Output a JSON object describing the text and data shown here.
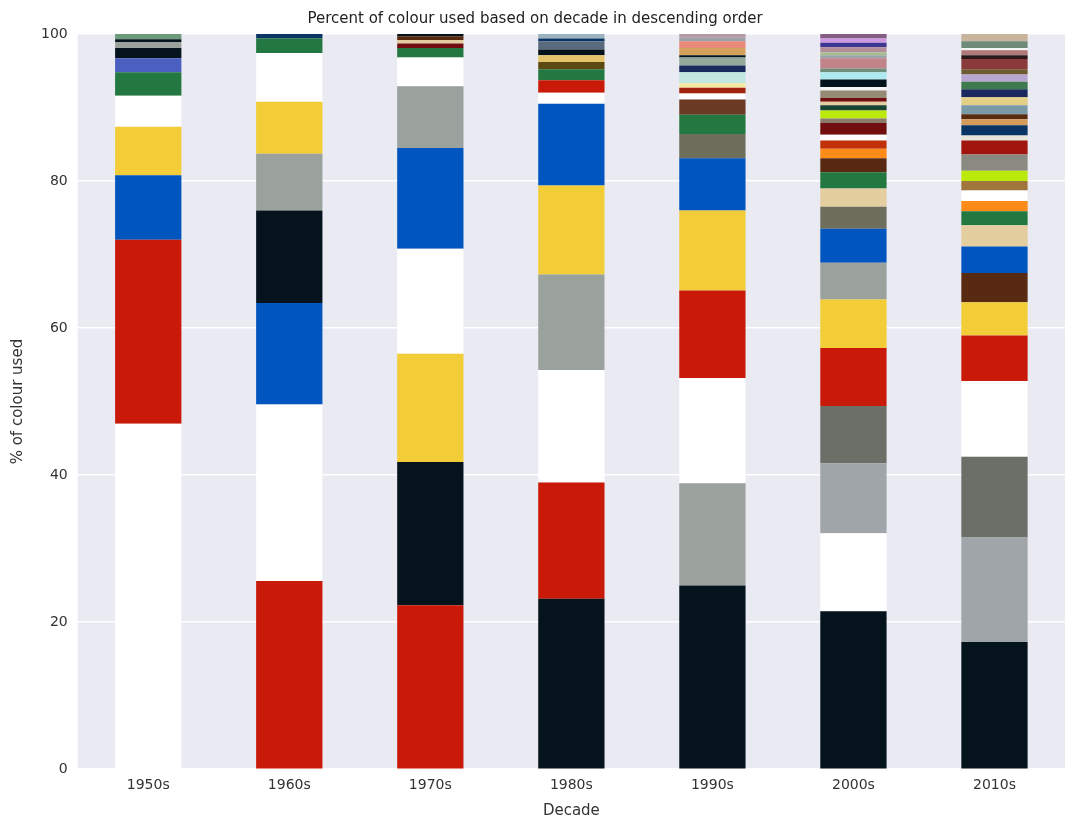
{
  "chart_data": {
    "type": "bar",
    "title": "Percent of colour used based on decade in descending order",
    "xlabel": "Decade",
    "ylabel": "% of colour used",
    "categories": [
      "1950s",
      "1960s",
      "1970s",
      "1980s",
      "1990s",
      "2000s",
      "2010s"
    ],
    "stacked": true,
    "ylim": [
      0,
      100
    ],
    "yticks": [
      0,
      20,
      40,
      60,
      80,
      100
    ],
    "grid": "y",
    "legend": false,
    "series": [
      {
        "values": [
          47,
          25.6,
          22.3,
          23.2,
          25,
          21.5,
          17.3
        ],
        "colors": [
          "#ffffff",
          "#c91a09",
          "#c91a09",
          "#05131d",
          "#05131d",
          "#05131d",
          "#05131d"
        ]
      },
      {
        "values": [
          25,
          24,
          19.5,
          15.8,
          13.9,
          10.6,
          14.2
        ],
        "colors": [
          "#c91a09",
          "#ffffff",
          "#05131d",
          "#c91a09",
          "#9ba19d",
          "#ffffff",
          "#a0a5a9"
        ]
      },
      {
        "values": [
          8.8,
          13.8,
          14.7,
          15.3,
          14.3,
          9.5,
          11.0
        ],
        "colors": [
          "#0055bf",
          "#0055bf",
          "#f2cd37",
          "#ffffff",
          "#ffffff",
          "#a0a5a9",
          "#6c6e68"
        ]
      },
      {
        "values": [
          6.6,
          12.6,
          14.3,
          13.0,
          11.9,
          7.8,
          10.3
        ],
        "colors": [
          "#f2cd37",
          "#05131d",
          "#ffffff",
          "#9ba19d",
          "#c91a09",
          "#6c6e68",
          "#ffffff"
        ]
      },
      {
        "values": [
          4.2,
          7.7,
          13.7,
          12.1,
          10.9,
          7.9,
          6.2
        ],
        "colors": [
          "#ffffff",
          "#9ba19d",
          "#0055bf",
          "#f2cd37",
          "#f2cd37",
          "#c91a09",
          "#c91a09"
        ]
      },
      {
        "values": [
          3.2,
          7.1,
          8.4,
          11.1,
          7.1,
          6.6,
          4.5
        ],
        "colors": [
          "#237841",
          "#f2cd37",
          "#9ba19d",
          "#0055bf",
          "#0055bf",
          "#f2cd37",
          "#f2cd37"
        ]
      },
      {
        "values": [
          1.9,
          6.6,
          3.9,
          1.5,
          3.3,
          5.0,
          4.0
        ],
        "colors": [
          "#4b5fc0",
          "#ffffff",
          "#ffffff",
          "#ffffff",
          "#6d6e5c",
          "#9ba19d",
          "#582a12"
        ]
      },
      {
        "values": [
          1.4,
          2.0,
          1.3,
          1.7,
          2.6,
          4.6,
          3.6
        ],
        "colors": [
          "#05131d",
          "#237841",
          "#237841",
          "#c91a09",
          "#237841",
          "#0055bf",
          "#0055bf"
        ]
      },
      {
        "values": [
          0.8,
          0.6,
          0.6,
          1.5,
          2.1,
          3.0,
          2.9
        ],
        "colors": [
          "#9ba19d",
          "#0a3463",
          "#720e0f",
          "#237841",
          "#6b3a24",
          "#6d6e5c",
          "#e4cd9e"
        ]
      },
      {
        "values": [
          0.4,
          null,
          0.5,
          1.0,
          0.8,
          2.5,
          1.9
        ],
        "colors": [
          "#05131d",
          null,
          "#e4cd9e",
          "#5c4a10",
          "#ffffff",
          "#e4cd9e",
          "#237841"
        ]
      },
      {
        "values": [
          0.7,
          null,
          0.5,
          0.9,
          0.8,
          2.2,
          1.4
        ],
        "colors": [
          "#6c9a7c",
          null,
          "#582a12",
          "#e3c46a",
          "#a0250f",
          "#237841",
          "#fe8a18"
        ]
      },
      {
        "values": [
          null,
          null,
          0.3,
          0.8,
          0.6,
          1.9,
          1.4
        ],
        "colors": [
          null,
          null,
          "#05131d",
          "#05131d",
          "#f6e9a0",
          "#582a12",
          "#ffffff"
        ]
      },
      {
        "values": [
          null,
          null,
          null,
          1.1,
          1.5,
          1.3,
          1.3
        ],
        "colors": [
          null,
          null,
          null,
          "#5a6b7d",
          "#c2e6e0",
          "#fe8a18",
          "#a0763c"
        ]
      },
      {
        "values": [
          null,
          null,
          null,
          0.4,
          0.9,
          1.1,
          1.4
        ],
        "colors": [
          null,
          null,
          null,
          "#0a3463",
          "#1b2a5e",
          "#c0310a",
          "#bbe90b"
        ]
      },
      {
        "values": [
          null,
          null,
          null,
          0.6,
          1.1,
          0.8,
          2.2
        ],
        "colors": [
          null,
          null,
          null,
          "#9bb3bf",
          "#94a89a",
          "#ffffff",
          "#8a8a80"
        ]
      },
      {
        "values": [
          null,
          null,
          null,
          null,
          0.3,
          1.6,
          1.9
        ],
        "colors": [
          null,
          null,
          null,
          null,
          "#05131d",
          "#720e0f",
          "#a0160f"
        ]
      },
      {
        "values": [
          null,
          null,
          null,
          null,
          1.0,
          0.6,
          0.7
        ],
        "colors": [
          null,
          null,
          null,
          null,
          "#d6a15a",
          "#8a7a6a",
          "#e8e4da"
        ]
      },
      {
        "values": [
          null,
          null,
          null,
          null,
          0.9,
          1.1,
          1.4
        ],
        "colors": [
          null,
          null,
          null,
          null,
          "#e88a7a",
          "#bbe90b",
          "#0a3463"
        ]
      },
      {
        "values": [
          null,
          null,
          null,
          null,
          0.5,
          0.7,
          0.8
        ],
        "colors": [
          null,
          null,
          null,
          null,
          "#9ca3a8",
          "#184632",
          "#d69a5a"
        ]
      },
      {
        "values": [
          null,
          null,
          null,
          null,
          0.5,
          0.5,
          0.7
        ],
        "colors": [
          null,
          null,
          null,
          null,
          "#b39aa5",
          "#e4cd9e",
          "#582a12"
        ]
      },
      {
        "values": [
          null,
          null,
          null,
          null,
          null,
          0.5,
          1.2
        ],
        "colors": [
          null,
          null,
          null,
          null,
          null,
          "#720e0f",
          "#7b9aa8"
        ]
      },
      {
        "values": [
          null,
          null,
          null,
          null,
          null,
          1.0,
          1.1
        ],
        "colors": [
          null,
          null,
          null,
          null,
          null,
          "#958a73",
          "#e3cf85"
        ]
      },
      {
        "values": [
          null,
          null,
          null,
          null,
          null,
          0.5,
          1.1
        ],
        "colors": [
          null,
          null,
          null,
          null,
          null,
          "#f4f4f4",
          "#1b2a5e"
        ]
      },
      {
        "values": [
          null,
          null,
          null,
          null,
          null,
          1.0,
          1.0
        ],
        "colors": [
          null,
          null,
          null,
          null,
          null,
          "#05131d",
          "#3e7a4e"
        ]
      },
      {
        "values": [
          null,
          null,
          null,
          null,
          null,
          1.0,
          1.0
        ],
        "colors": [
          null,
          null,
          null,
          null,
          null,
          "#aee9ef",
          "#b8a6d0"
        ]
      },
      {
        "values": [
          null,
          null,
          null,
          null,
          null,
          0.5,
          0.7
        ],
        "colors": [
          null,
          null,
          null,
          null,
          null,
          "#708e7c",
          "#6e5a30"
        ]
      },
      {
        "values": [
          null,
          null,
          null,
          null,
          null,
          1.4,
          1.4
        ],
        "colors": [
          null,
          null,
          null,
          null,
          null,
          "#c1838a",
          "#8a3a3a"
        ]
      },
      {
        "values": [
          null,
          null,
          null,
          null,
          null,
          0.4,
          0.5
        ],
        "colors": [
          null,
          null,
          null,
          null,
          null,
          "#9ca3a8",
          "#2a1a1a"
        ]
      },
      {
        "values": [
          null,
          null,
          null,
          null,
          null,
          0.4,
          0.7
        ],
        "colors": [
          null,
          null,
          null,
          null,
          null,
          "#a5bd8a",
          "#b07a7a"
        ]
      },
      {
        "values": [
          null,
          null,
          null,
          null,
          null,
          0.7,
          0.3
        ],
        "colors": [
          null,
          null,
          null,
          null,
          null,
          "#b38e9a",
          "#f4f4f4"
        ]
      },
      {
        "values": [
          null,
          null,
          null,
          null,
          null,
          0.6,
          0.9
        ],
        "colors": [
          null,
          null,
          null,
          null,
          null,
          "#3f3691",
          "#6e8a78"
        ]
      },
      {
        "values": [
          null,
          null,
          null,
          null,
          null,
          0.6,
          1.0
        ],
        "colors": [
          null,
          null,
          null,
          null,
          null,
          "#cd9ae2",
          "#c8b49a"
        ]
      },
      {
        "values": [
          null,
          null,
          null,
          null,
          null,
          0.6,
          null
        ],
        "colors": [
          null,
          null,
          null,
          null,
          null,
          "#845e84",
          null
        ]
      }
    ]
  }
}
